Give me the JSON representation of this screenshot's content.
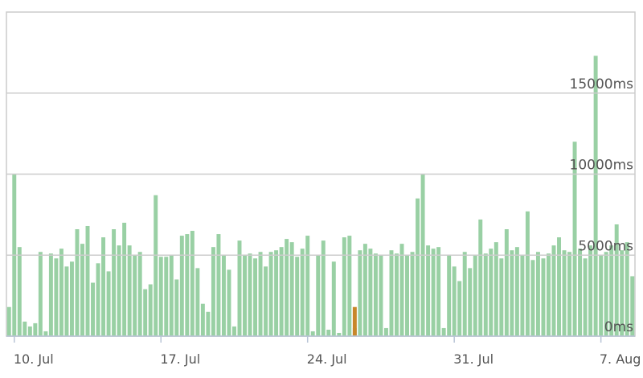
{
  "chart_data": {
    "type": "bar",
    "categories": [
      null,
      "10. Jul",
      null,
      null,
      null,
      null,
      null,
      null,
      null,
      null,
      null,
      null,
      null,
      null,
      null,
      null,
      null,
      null,
      null,
      null,
      null,
      null,
      null,
      null,
      null,
      null,
      null,
      null,
      null,
      "17. Jul",
      null,
      null,
      null,
      null,
      null,
      null,
      null,
      null,
      null,
      null,
      null,
      null,
      null,
      null,
      null,
      null,
      null,
      null,
      null,
      null,
      null,
      null,
      null,
      null,
      null,
      null,
      null,
      "24. Jul",
      null,
      null,
      null,
      null,
      null,
      null,
      null,
      null,
      null,
      null,
      null,
      null,
      null,
      null,
      null,
      null,
      null,
      null,
      null,
      null,
      null,
      null,
      null,
      null,
      null,
      null,
      null,
      "31. Jul",
      null,
      null,
      null,
      null,
      null,
      null,
      null,
      null,
      null,
      null,
      null,
      null,
      null,
      null,
      null,
      null,
      null,
      null,
      null,
      null,
      null,
      null,
      null,
      null,
      null,
      null,
      null,
      "7. Aug",
      null,
      null,
      null,
      null,
      null,
      null
    ],
    "series": [
      {
        "color": "#99d0a4",
        "values": [
          1800,
          10000,
          5500,
          900,
          600,
          800,
          5200,
          300,
          5100,
          4800,
          5400,
          4300,
          4600,
          6600,
          5700,
          6800,
          3300,
          4500,
          6100,
          4000,
          6600,
          5600,
          7000,
          5600,
          5000,
          5200,
          2900,
          3200,
          8700,
          4900,
          4900,
          5000,
          3500,
          6200,
          6300,
          6500,
          4200,
          2000,
          1500,
          5500,
          6300,
          5000,
          4100,
          600,
          5900,
          5000,
          5100,
          4800,
          5200,
          4300,
          5200,
          5300,
          5500,
          6000,
          5800,
          4900,
          5400,
          6200,
          300,
          5000,
          5900,
          400,
          4600,
          200,
          6100,
          6200,
          500,
          5300,
          5700,
          5400,
          5100,
          5000,
          500,
          5300,
          5100,
          5700,
          5000,
          5200,
          8500,
          10000,
          5600,
          5400,
          5500,
          500,
          5000,
          4300,
          3400,
          5200,
          4200,
          5000,
          7200,
          5100,
          5400,
          5800,
          4800,
          6600,
          5300,
          5500,
          5000,
          7700,
          4700,
          5200,
          4800,
          5100,
          5600,
          6100,
          5300,
          5200,
          12000,
          5400,
          4800,
          5600,
          17300,
          5000,
          5200,
          5600,
          6900,
          5300,
          5800,
          3700
        ]
      },
      {
        "color": "#c8862a",
        "values": [
          null,
          null,
          null,
          null,
          null,
          null,
          null,
          null,
          null,
          null,
          null,
          null,
          null,
          null,
          null,
          null,
          null,
          null,
          null,
          null,
          null,
          null,
          null,
          null,
          null,
          null,
          null,
          null,
          null,
          null,
          null,
          null,
          null,
          null,
          null,
          null,
          null,
          null,
          null,
          null,
          null,
          null,
          null,
          null,
          null,
          null,
          null,
          null,
          null,
          null,
          null,
          null,
          null,
          null,
          null,
          null,
          null,
          null,
          null,
          null,
          null,
          null,
          null,
          null,
          null,
          null,
          1800,
          null,
          null,
          null,
          null,
          null,
          null,
          null,
          null,
          null,
          null,
          null,
          null,
          null,
          null,
          null,
          null,
          null,
          null,
          null,
          null,
          null,
          null,
          null,
          null,
          null,
          null,
          null,
          null,
          null,
          null,
          null,
          null,
          null,
          null,
          null,
          null,
          null,
          null,
          null,
          null,
          null,
          null,
          null,
          null,
          null,
          null,
          null,
          null,
          null,
          null,
          null,
          null,
          null
        ]
      }
    ],
    "ylim": [
      0,
      20000
    ],
    "yticks": [
      {
        "value": 0,
        "label": "0ms"
      },
      {
        "value": 5000,
        "label": "5000ms"
      },
      {
        "value": 10000,
        "label": "10000ms"
      },
      {
        "value": 15000,
        "label": "15000ms"
      }
    ],
    "grid": true
  }
}
